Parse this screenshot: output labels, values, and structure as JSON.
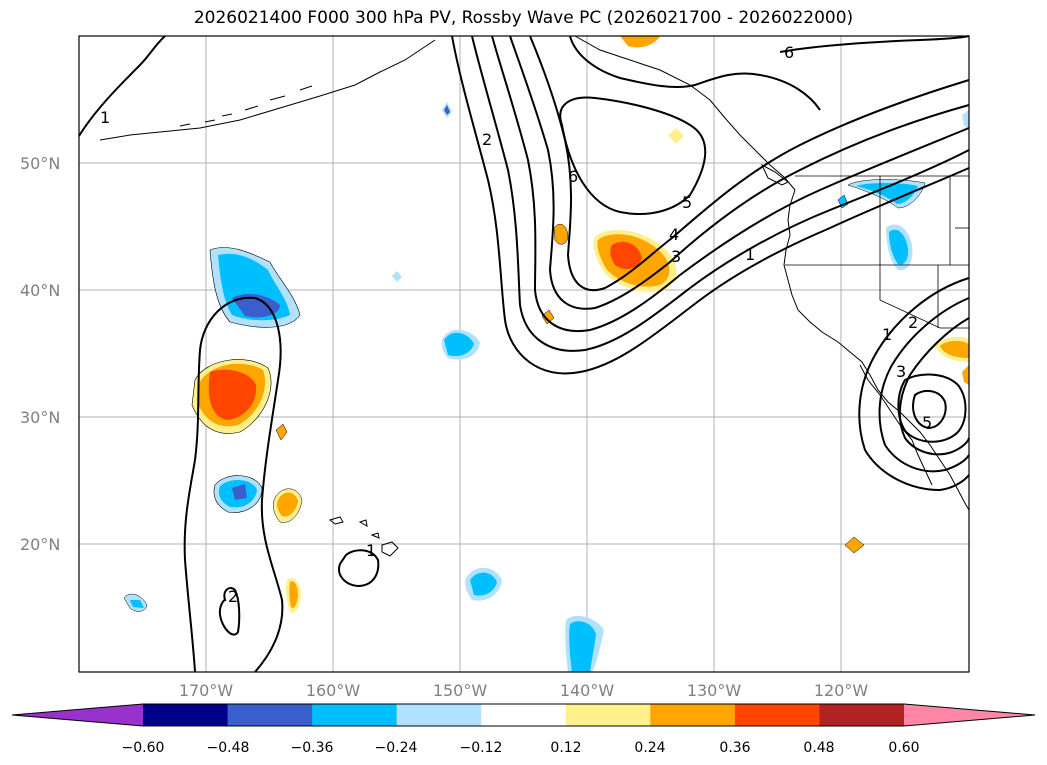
{
  "title": "2026021400 F000 300 hPa PV, Rossby Wave PC (2026021700 - 2026022000)",
  "map": {
    "lat_labels": [
      "50°N",
      "40°N",
      "30°N",
      "20°N"
    ],
    "lon_labels": [
      "170°W",
      "160°W",
      "150°W",
      "140°W",
      "130°W",
      "120°W"
    ]
  },
  "contour_labels": [
    "1",
    "2",
    "6",
    "5",
    "4",
    "3",
    "1",
    "6",
    "1",
    "2",
    "3",
    "5",
    "1",
    "2"
  ],
  "colorbar": {
    "colors": [
      "#9932cc",
      "#00008b",
      "#3a5fcd",
      "#00bfff",
      "#b0e2ff",
      "#ffffff",
      "#fff08c",
      "#ffa500",
      "#ff4500",
      "#b22222",
      "#ff86a6"
    ],
    "tick_labels": [
      "−0.60",
      "−0.48",
      "−0.36",
      "−0.24",
      "−0.12",
      "0.12",
      "0.24",
      "0.36",
      "0.48",
      "0.60"
    ]
  }
}
